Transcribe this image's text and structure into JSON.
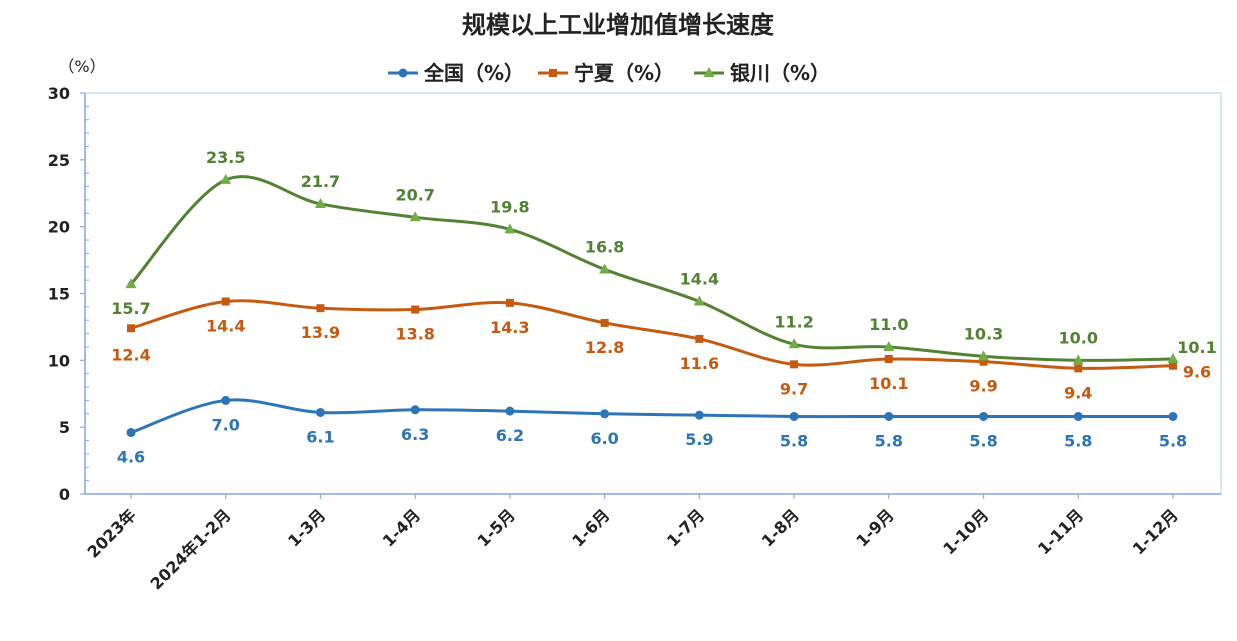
{
  "chart_data": {
    "type": "line",
    "title": "规模以上工业增加值增长速度",
    "y_unit": "（%）",
    "ylim": [
      0,
      30
    ],
    "yticks": [
      "0",
      "5",
      "10",
      "15",
      "20",
      "25",
      "30"
    ],
    "categories": [
      "2023年",
      "2024年1-2月",
      "1-3月",
      "1-4月",
      "1-5月",
      "1-6月",
      "1-7月",
      "1-8月",
      "1-9月",
      "1-10月",
      "1-11月",
      "1-12月"
    ],
    "series": [
      {
        "name": "全国（%）",
        "color": "#2e75b6",
        "marker": "circle",
        "values": [
          4.6,
          7.0,
          6.1,
          6.3,
          6.2,
          6.0,
          5.9,
          5.8,
          5.8,
          5.8,
          5.8,
          5.8
        ],
        "labels": [
          "4.6",
          "7.0",
          "6.1",
          "6.3",
          "6.2",
          "6.0",
          "5.9",
          "5.8",
          "5.8",
          "5.8",
          "5.8",
          "5.8"
        ]
      },
      {
        "name": "宁夏（%）",
        "color": "#c55a11",
        "marker": "square",
        "values": [
          12.4,
          14.4,
          13.9,
          13.8,
          14.3,
          12.8,
          11.6,
          9.7,
          10.1,
          9.9,
          9.4,
          9.6
        ],
        "labels": [
          "12.4",
          "14.4",
          "13.9",
          "13.8",
          "14.3",
          "12.8",
          "11.6",
          "9.7",
          "10.1",
          "9.9",
          "9.4",
          "9.6"
        ]
      },
      {
        "name": "银川（%）",
        "color": "#548235",
        "marker": "triangle",
        "values": [
          15.7,
          23.5,
          21.7,
          20.7,
          19.8,
          16.8,
          14.4,
          11.2,
          11.0,
          10.3,
          10.0,
          10.1
        ],
        "labels": [
          "15.7",
          "23.5",
          "21.7",
          "20.7",
          "19.8",
          "16.8",
          "14.4",
          "11.2",
          "11.0",
          "10.3",
          "10.0",
          "10.1"
        ]
      }
    ],
    "marker_colors": {
      "circle": "#2e75b6",
      "square": "#c55a11",
      "triangle": "#70ad47"
    },
    "legend_position": "top",
    "grid": false
  }
}
